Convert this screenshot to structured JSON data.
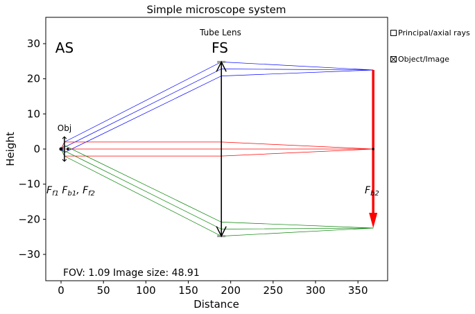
{
  "chart_data": {
    "type": "optical-ray-diagram",
    "title": "Simple microscope system",
    "xlabel": "Distance",
    "ylabel": "Height",
    "xlim": [
      -18,
      385
    ],
    "ylim": [
      -37.5,
      37.5
    ],
    "xticks": [
      0,
      50,
      100,
      150,
      200,
      250,
      300,
      350
    ],
    "yticks": [
      -30,
      -20,
      -10,
      0,
      10,
      20,
      30
    ],
    "grid": false,
    "labels": {
      "as": "AS",
      "fs": "FS",
      "tube_lens": "Tube Lens",
      "obj": "Obj",
      "focal_left": "Ff1 Fb1, Ff2",
      "focal_right": "Fb2",
      "fov": "FOV: 1.09 Image size: 48.91"
    },
    "elements": {
      "objective": {
        "x": 4,
        "half_height": 3.5
      },
      "tube_lens": {
        "x": 189,
        "half_height": 24.8
      },
      "image_plane": {
        "x": 368,
        "top": 22.5,
        "bottom": -22.5
      }
    },
    "rays": [
      {
        "color": "#0000ff",
        "points": [
          [
            0,
            0
          ],
          [
            4,
            2
          ],
          [
            189,
            24.8
          ],
          [
            368,
            22.5
          ]
        ]
      },
      {
        "color": "#0000ff",
        "points": [
          [
            0,
            0
          ],
          [
            4,
            0.5
          ],
          [
            189,
            22.8
          ],
          [
            368,
            22.5
          ]
        ]
      },
      {
        "color": "#0000ff",
        "points": [
          [
            0,
            0
          ],
          [
            4,
            -1.0
          ],
          [
            189,
            20.8
          ],
          [
            368,
            22.5
          ]
        ]
      },
      {
        "color": "#ff0000",
        "points": [
          [
            0,
            0
          ],
          [
            4,
            2
          ],
          [
            189,
            2
          ],
          [
            368,
            0
          ]
        ]
      },
      {
        "color": "#ff0000",
        "points": [
          [
            0,
            0
          ],
          [
            4,
            0
          ],
          [
            189,
            0
          ],
          [
            368,
            0
          ]
        ]
      },
      {
        "color": "#ff0000",
        "points": [
          [
            0,
            0
          ],
          [
            4,
            -2
          ],
          [
            189,
            -2
          ],
          [
            368,
            0
          ]
        ]
      },
      {
        "color": "#008000",
        "points": [
          [
            0,
            0
          ],
          [
            4,
            1.0
          ],
          [
            189,
            -20.8
          ],
          [
            368,
            -22.5
          ]
        ]
      },
      {
        "color": "#008000",
        "points": [
          [
            0,
            0
          ],
          [
            4,
            -0.5
          ],
          [
            189,
            -22.8
          ],
          [
            368,
            -22.5
          ]
        ]
      },
      {
        "color": "#008000",
        "points": [
          [
            0,
            0
          ],
          [
            4,
            -2
          ],
          [
            189,
            -24.8
          ],
          [
            368,
            -22.5
          ]
        ]
      }
    ],
    "focal_points": [
      0,
      8,
      368
    ],
    "legend": [
      {
        "label": "Principal/axial rays",
        "checked": false
      },
      {
        "label": "Object/Image",
        "checked": true
      }
    ],
    "colors": {
      "image_arrow": "#ff0000",
      "axis": "#000000"
    }
  }
}
